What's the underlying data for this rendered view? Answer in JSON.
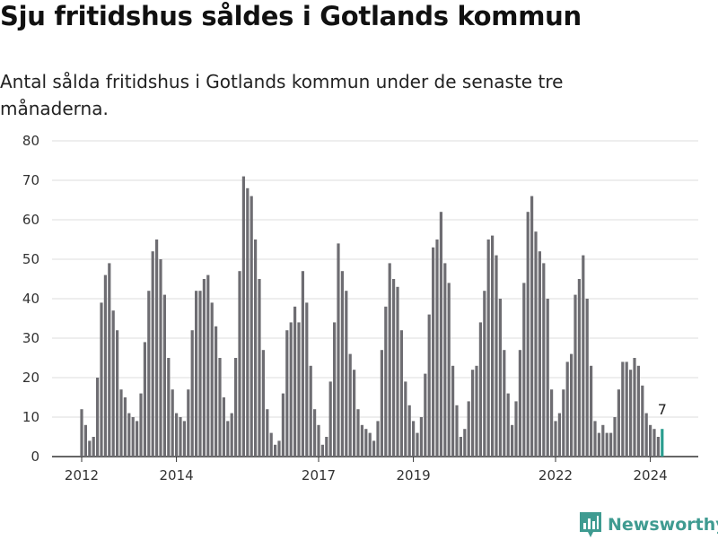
{
  "header": {
    "title": "Sju fritidshus såldes i Gotlands kommun",
    "subtitle": "Antal sålda fritidshus i Gotlands kommun under de senaste tre månaderna."
  },
  "brand": {
    "name": "Newsworthy",
    "icon": "newsworthy-logo-icon",
    "color": "#3f9b91"
  },
  "colors": {
    "bar": "#6e6d72",
    "highlight": "#2a9d8f",
    "grid": "#dddddd",
    "axis": "#333333"
  },
  "chart_data": {
    "type": "bar",
    "title": "",
    "xlabel": "",
    "ylabel": "",
    "ylim": [
      0,
      80
    ],
    "yticks": [
      0,
      10,
      20,
      30,
      40,
      50,
      60,
      70,
      80
    ],
    "xticks": [
      "2012",
      "2014",
      "2017",
      "2019",
      "2022",
      "2024"
    ],
    "grid": true,
    "start_month": "2012-01",
    "values": [
      12,
      8,
      4,
      5,
      20,
      39,
      46,
      49,
      37,
      32,
      17,
      15,
      11,
      10,
      9,
      16,
      29,
      42,
      52,
      55,
      50,
      41,
      25,
      17,
      11,
      10,
      9,
      17,
      32,
      42,
      42,
      45,
      46,
      39,
      33,
      25,
      15,
      9,
      11,
      25,
      47,
      71,
      68,
      66,
      55,
      45,
      27,
      12,
      6,
      3,
      4,
      16,
      32,
      34,
      38,
      34,
      47,
      39,
      23,
      12,
      8,
      3,
      5,
      19,
      34,
      54,
      47,
      42,
      26,
      22,
      12,
      8,
      7,
      6,
      4,
      9,
      27,
      38,
      49,
      45,
      43,
      32,
      19,
      13,
      9,
      6,
      10,
      21,
      36,
      53,
      55,
      62,
      49,
      44,
      23,
      13,
      5,
      7,
      14,
      22,
      23,
      34,
      42,
      55,
      56,
      51,
      40,
      27,
      16,
      8,
      14,
      27,
      44,
      62,
      66,
      57,
      52,
      49,
      40,
      17,
      9,
      11,
      17,
      24,
      26,
      41,
      45,
      51,
      40,
      23,
      9,
      6,
      8,
      6,
      6,
      10,
      17,
      24,
      24,
      22,
      25,
      23,
      18,
      11,
      8,
      7,
      5,
      7
    ],
    "highlight_index": 147,
    "annotation": "7"
  }
}
